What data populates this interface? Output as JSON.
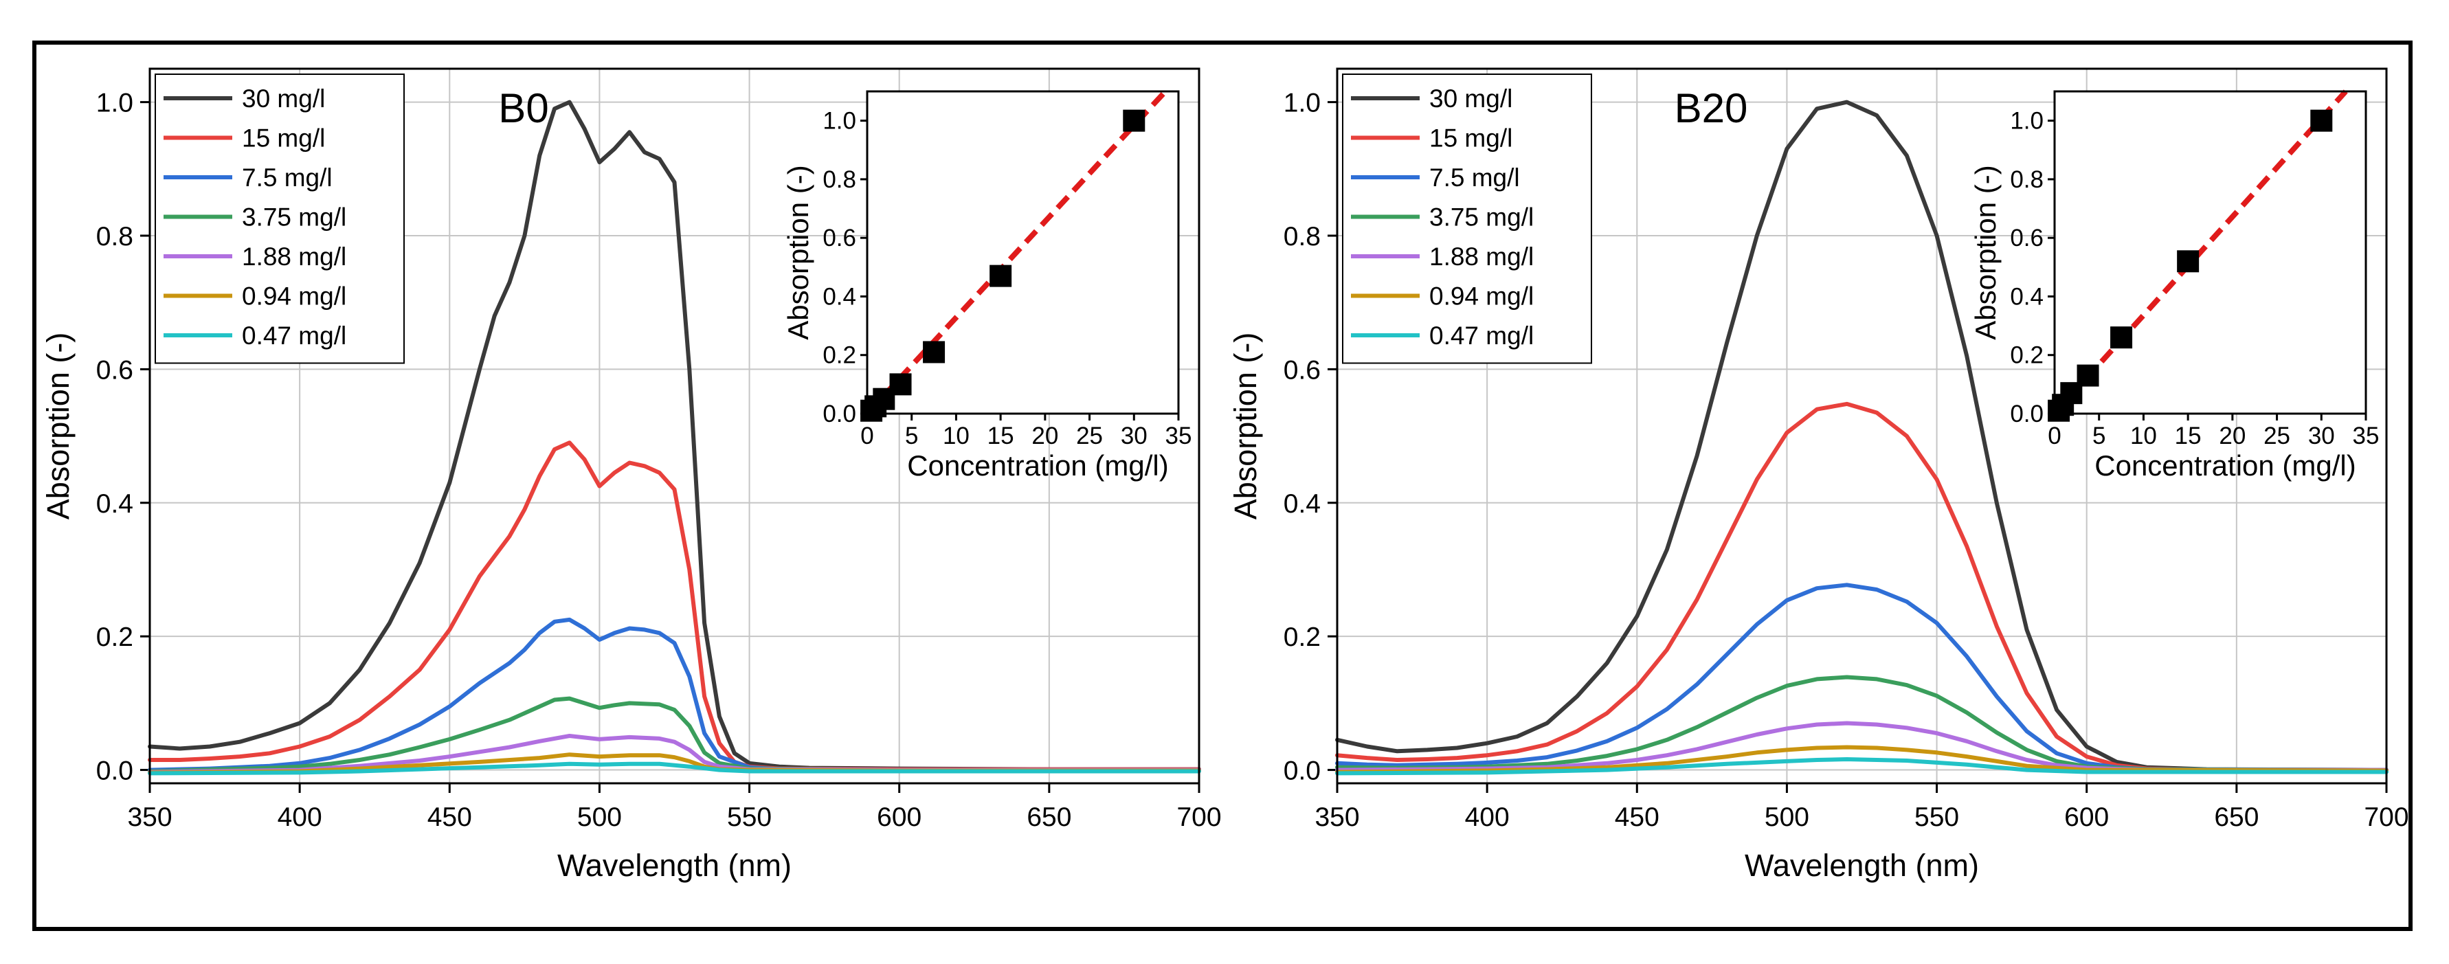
{
  "chart_data": [
    {
      "type": "line",
      "title": "B0",
      "xlabel": "Wavelength (nm)",
      "ylabel": "Absorption (-)",
      "xlim": [
        350,
        700
      ],
      "ylim": [
        -0.02,
        1.05
      ],
      "xticks": [
        "350",
        "400",
        "450",
        "500",
        "550",
        "600",
        "650",
        "700"
      ],
      "yticks": [
        "0.0",
        "0.2",
        "0.4",
        "0.6",
        "0.8",
        "1.0"
      ],
      "grid": true,
      "legend_position": "top-left",
      "series": [
        {
          "name": "30 mg/l",
          "color": "#3a3a3a",
          "x": [
            350,
            360,
            370,
            380,
            390,
            400,
            410,
            420,
            430,
            440,
            450,
            460,
            465,
            470,
            475,
            480,
            485,
            490,
            495,
            500,
            505,
            510,
            515,
            520,
            525,
            530,
            535,
            540,
            545,
            550,
            560,
            570,
            600,
            650,
            700
          ],
          "y": [
            0.035,
            0.032,
            0.035,
            0.042,
            0.055,
            0.07,
            0.1,
            0.15,
            0.22,
            0.31,
            0.43,
            0.6,
            0.68,
            0.73,
            0.8,
            0.92,
            0.99,
            1.0,
            0.96,
            0.91,
            0.93,
            0.955,
            0.925,
            0.915,
            0.88,
            0.6,
            0.22,
            0.08,
            0.025,
            0.01,
            0.005,
            0.003,
            0.002,
            0.001,
            0.001
          ]
        },
        {
          "name": "15 mg/l",
          "color": "#e8413c",
          "x": [
            350,
            360,
            370,
            380,
            390,
            400,
            410,
            420,
            430,
            440,
            450,
            460,
            465,
            470,
            475,
            480,
            485,
            490,
            495,
            500,
            505,
            510,
            515,
            520,
            525,
            530,
            535,
            540,
            545,
            550,
            560,
            600,
            700
          ],
          "y": [
            0.015,
            0.015,
            0.017,
            0.02,
            0.025,
            0.035,
            0.05,
            0.075,
            0.11,
            0.15,
            0.21,
            0.29,
            0.32,
            0.35,
            0.39,
            0.44,
            0.48,
            0.49,
            0.465,
            0.425,
            0.445,
            0.46,
            0.455,
            0.445,
            0.42,
            0.3,
            0.11,
            0.04,
            0.012,
            0.005,
            0.002,
            0.001,
            0.001
          ]
        },
        {
          "name": "7.5 mg/l",
          "color": "#2f6fd6",
          "x": [
            350,
            370,
            390,
            400,
            410,
            420,
            430,
            440,
            450,
            460,
            465,
            470,
            475,
            480,
            485,
            490,
            495,
            500,
            505,
            510,
            515,
            520,
            525,
            530,
            535,
            540,
            550,
            560,
            600,
            700
          ],
          "y": [
            0.0,
            0.002,
            0.006,
            0.01,
            0.018,
            0.03,
            0.047,
            0.068,
            0.095,
            0.13,
            0.145,
            0.16,
            0.18,
            0.205,
            0.222,
            0.225,
            0.212,
            0.195,
            0.205,
            0.212,
            0.21,
            0.205,
            0.19,
            0.14,
            0.055,
            0.02,
            0.004,
            0.001,
            0.0,
            0.0
          ]
        },
        {
          "name": "3.75 mg/l",
          "color": "#3a9e5c",
          "x": [
            350,
            390,
            400,
            410,
            420,
            430,
            440,
            450,
            460,
            470,
            480,
            485,
            490,
            495,
            500,
            505,
            510,
            520,
            525,
            530,
            535,
            540,
            550,
            600,
            700
          ],
          "y": [
            -0.002,
            0.003,
            0.005,
            0.009,
            0.015,
            0.023,
            0.034,
            0.046,
            0.06,
            0.075,
            0.095,
            0.105,
            0.107,
            0.1,
            0.093,
            0.097,
            0.1,
            0.098,
            0.09,
            0.066,
            0.026,
            0.01,
            0.002,
            0.0,
            0.0
          ]
        },
        {
          "name": "1.88 mg/l",
          "color": "#b06fe0",
          "x": [
            350,
            400,
            420,
            440,
            450,
            460,
            470,
            480,
            490,
            500,
            510,
            520,
            525,
            530,
            535,
            540,
            550,
            600,
            700
          ],
          "y": [
            -0.003,
            0.0,
            0.006,
            0.014,
            0.02,
            0.027,
            0.034,
            0.043,
            0.051,
            0.046,
            0.049,
            0.047,
            0.042,
            0.03,
            0.012,
            0.005,
            0.001,
            0.0,
            0.0
          ]
        },
        {
          "name": "0.94 mg/l",
          "color": "#c9940f",
          "x": [
            350,
            400,
            420,
            440,
            460,
            480,
            490,
            500,
            510,
            520,
            525,
            530,
            535,
            540,
            550,
            600,
            700
          ],
          "y": [
            -0.004,
            -0.002,
            0.002,
            0.007,
            0.012,
            0.018,
            0.023,
            0.02,
            0.022,
            0.022,
            0.019,
            0.013,
            0.005,
            0.001,
            0.0,
            -0.001,
            -0.001
          ]
        },
        {
          "name": "0.47 mg/l",
          "color": "#22c2c6",
          "x": [
            350,
            400,
            420,
            440,
            460,
            480,
            490,
            500,
            510,
            520,
            530,
            540,
            550,
            600,
            700
          ],
          "y": [
            -0.005,
            -0.004,
            -0.002,
            0.001,
            0.004,
            0.007,
            0.009,
            0.008,
            0.009,
            0.009,
            0.005,
            0.0,
            -0.002,
            -0.002,
            -0.002
          ]
        }
      ],
      "inset": {
        "type": "scatter",
        "xlabel": "Concentration (mg/l)",
        "ylabel": "Absorption (-)",
        "xlim": [
          0,
          35
        ],
        "ylim": [
          0,
          1.1
        ],
        "xticks": [
          "0",
          "5",
          "10",
          "15",
          "20",
          "25",
          "30",
          "35"
        ],
        "yticks": [
          "0.0",
          "0.2",
          "0.4",
          "0.6",
          "0.8",
          "1.0"
        ],
        "points": {
          "x": [
            0.47,
            0.94,
            1.88,
            3.75,
            7.5,
            15,
            30
          ],
          "y": [
            0.01,
            0.025,
            0.05,
            0.1,
            0.21,
            0.47,
            1.0
          ],
          "color": "#000000"
        },
        "fit_line": {
          "color": "#e01b1b",
          "slope": 0.0328,
          "intercept": 0.0
        }
      }
    },
    {
      "type": "line",
      "title": "B20",
      "xlabel": "Wavelength (nm)",
      "ylabel": "Absorption (-)",
      "xlim": [
        350,
        700
      ],
      "ylim": [
        -0.02,
        1.05
      ],
      "xticks": [
        "350",
        "400",
        "450",
        "500",
        "550",
        "600",
        "650",
        "700"
      ],
      "yticks": [
        "0.0",
        "0.2",
        "0.4",
        "0.6",
        "0.8",
        "1.0"
      ],
      "grid": true,
      "legend_position": "top-left",
      "series": [
        {
          "name": "30 mg/l",
          "color": "#3a3a3a",
          "x": [
            350,
            360,
            370,
            380,
            390,
            400,
            410,
            420,
            430,
            440,
            450,
            460,
            470,
            480,
            490,
            500,
            510,
            520,
            530,
            540,
            550,
            560,
            570,
            580,
            590,
            600,
            610,
            620,
            640,
            700
          ],
          "y": [
            0.045,
            0.035,
            0.028,
            0.03,
            0.033,
            0.04,
            0.05,
            0.07,
            0.11,
            0.16,
            0.23,
            0.33,
            0.47,
            0.64,
            0.8,
            0.93,
            0.99,
            1.0,
            0.98,
            0.92,
            0.8,
            0.62,
            0.4,
            0.21,
            0.09,
            0.035,
            0.012,
            0.004,
            0.001,
            0.0
          ]
        },
        {
          "name": "15 mg/l",
          "color": "#e8413c",
          "x": [
            350,
            360,
            370,
            380,
            390,
            400,
            410,
            420,
            430,
            440,
            450,
            460,
            470,
            480,
            490,
            500,
            510,
            520,
            530,
            540,
            550,
            560,
            570,
            580,
            590,
            600,
            610,
            620,
            640,
            700
          ],
          "y": [
            0.022,
            0.018,
            0.015,
            0.016,
            0.018,
            0.022,
            0.028,
            0.038,
            0.058,
            0.085,
            0.125,
            0.18,
            0.255,
            0.345,
            0.435,
            0.505,
            0.54,
            0.548,
            0.535,
            0.5,
            0.435,
            0.335,
            0.215,
            0.115,
            0.05,
            0.02,
            0.007,
            0.002,
            0.0,
            0.0
          ]
        },
        {
          "name": "7.5 mg/l",
          "color": "#2f6fd6",
          "x": [
            350,
            360,
            370,
            380,
            390,
            400,
            410,
            420,
            430,
            440,
            450,
            460,
            470,
            480,
            490,
            500,
            510,
            520,
            530,
            540,
            550,
            560,
            570,
            580,
            590,
            600,
            610,
            620,
            640,
            700
          ],
          "y": [
            0.01,
            0.008,
            0.007,
            0.008,
            0.009,
            0.011,
            0.014,
            0.019,
            0.029,
            0.043,
            0.063,
            0.091,
            0.128,
            0.173,
            0.218,
            0.254,
            0.272,
            0.277,
            0.27,
            0.252,
            0.22,
            0.17,
            0.11,
            0.058,
            0.025,
            0.01,
            0.004,
            0.001,
            0.0,
            0.0
          ]
        },
        {
          "name": "3.75 mg/l",
          "color": "#3a9e5c",
          "x": [
            350,
            370,
            390,
            400,
            410,
            420,
            430,
            440,
            450,
            460,
            470,
            480,
            490,
            500,
            510,
            520,
            530,
            540,
            550,
            560,
            570,
            580,
            590,
            600,
            620,
            700
          ],
          "y": [
            0.004,
            0.003,
            0.004,
            0.005,
            0.007,
            0.009,
            0.014,
            0.021,
            0.031,
            0.045,
            0.064,
            0.086,
            0.108,
            0.126,
            0.136,
            0.139,
            0.136,
            0.127,
            0.111,
            0.086,
            0.056,
            0.03,
            0.013,
            0.005,
            0.001,
            0.0
          ]
        },
        {
          "name": "1.88 mg/l",
          "color": "#b06fe0",
          "x": [
            350,
            380,
            400,
            420,
            440,
            450,
            460,
            470,
            480,
            490,
            500,
            510,
            520,
            530,
            540,
            550,
            560,
            570,
            580,
            590,
            600,
            620,
            700
          ],
          "y": [
            0.0,
            0.001,
            0.002,
            0.004,
            0.01,
            0.015,
            0.022,
            0.031,
            0.042,
            0.053,
            0.062,
            0.068,
            0.07,
            0.068,
            0.063,
            0.055,
            0.043,
            0.028,
            0.015,
            0.007,
            0.003,
            0.0,
            0.0
          ]
        },
        {
          "name": "0.94 mg/l",
          "color": "#c9940f",
          "x": [
            350,
            400,
            420,
            440,
            460,
            480,
            490,
            500,
            510,
            520,
            530,
            540,
            550,
            560,
            570,
            580,
            600,
            700
          ],
          "y": [
            -0.003,
            -0.001,
            0.001,
            0.004,
            0.01,
            0.02,
            0.026,
            0.03,
            0.033,
            0.034,
            0.033,
            0.03,
            0.026,
            0.02,
            0.013,
            0.006,
            0.0,
            -0.001
          ]
        },
        {
          "name": "0.47 mg/l",
          "color": "#22c2c6",
          "x": [
            350,
            400,
            420,
            440,
            460,
            480,
            500,
            510,
            520,
            530,
            540,
            550,
            560,
            570,
            580,
            600,
            700
          ],
          "y": [
            -0.005,
            -0.004,
            -0.002,
            0.0,
            0.004,
            0.009,
            0.013,
            0.015,
            0.016,
            0.015,
            0.014,
            0.011,
            0.008,
            0.004,
            0.0,
            -0.003,
            -0.003
          ]
        }
      ],
      "inset": {
        "type": "scatter",
        "xlabel": "Concentration (mg/l)",
        "ylabel": "Absorption (-)",
        "xlim": [
          0,
          35
        ],
        "ylim": [
          0,
          1.1
        ],
        "xticks": [
          "0",
          "5",
          "10",
          "15",
          "20",
          "25",
          "30",
          "35"
        ],
        "yticks": [
          "0.0",
          "0.2",
          "0.4",
          "0.6",
          "0.8",
          "1.0"
        ],
        "points": {
          "x": [
            0.47,
            0.94,
            1.88,
            3.75,
            7.5,
            15,
            30
          ],
          "y": [
            0.01,
            0.03,
            0.07,
            0.13,
            0.26,
            0.52,
            1.0
          ],
          "color": "#000000"
        },
        "fit_line": {
          "color": "#e01b1b",
          "slope": 0.0336,
          "intercept": 0.0
        }
      }
    }
  ]
}
